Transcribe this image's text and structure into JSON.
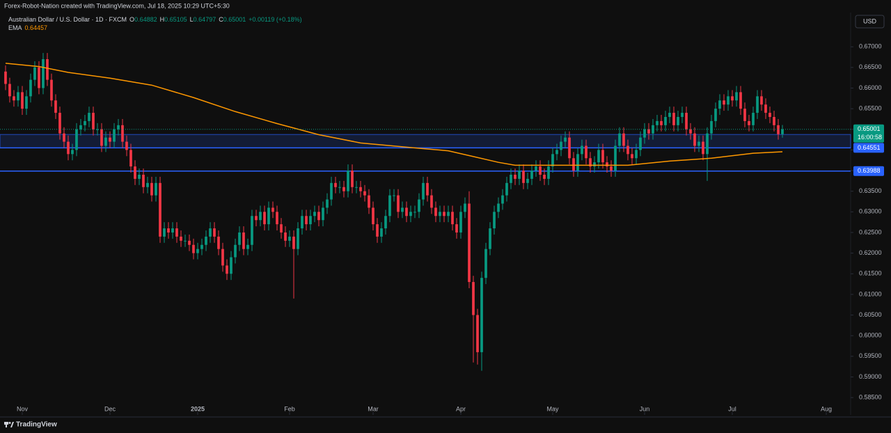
{
  "header": {
    "attribution": "Forex-Robot-Nation created with TradingView.com, Jul 18, 2025 10:29 UTC+5:30"
  },
  "toolbar": {
    "currency": "USD"
  },
  "footer": {
    "brand": "TradingView"
  },
  "chart_data": {
    "type": "candlestick",
    "title": "Australian Dollar / U.S. Dollar · 1D · FXCM",
    "ohlc_labels": [
      "O",
      "H",
      "L",
      "C"
    ],
    "change": "+0.00119 (+0.18%)",
    "countdown": "16:00:58",
    "up_color": "#089981",
    "down_color": "#f23645",
    "open": [
      0.664,
      0.661,
      0.658,
      0.657,
      0.659,
      0.655,
      0.658,
      0.662,
      0.665,
      0.66,
      0.667,
      0.662,
      0.657,
      0.654,
      0.649,
      0.647,
      0.644,
      0.645,
      0.65,
      0.651,
      0.652,
      0.654,
      0.65,
      0.65,
      0.646,
      0.648,
      0.647,
      0.65,
      0.651,
      0.647,
      0.645,
      0.641,
      0.638,
      0.639,
      0.636,
      0.637,
      0.634,
      0.637,
      0.624,
      0.626,
      0.625,
      0.626,
      0.624,
      0.623,
      0.623,
      0.622,
      0.62,
      0.621,
      0.622,
      0.624,
      0.626,
      0.624,
      0.621,
      0.617,
      0.615,
      0.619,
      0.622,
      0.625,
      0.621,
      0.622,
      0.629,
      0.628,
      0.63,
      0.627,
      0.631,
      0.63,
      0.627,
      0.625,
      0.623,
      0.624,
      0.621,
      0.626,
      0.629,
      0.627,
      0.629,
      0.63,
      0.628,
      0.631,
      0.633,
      0.637,
      0.636,
      0.636,
      0.635,
      0.64,
      0.636,
      0.636,
      0.635,
      0.634,
      0.631,
      0.627,
      0.624,
      0.626,
      0.629,
      0.634,
      0.634,
      0.63,
      0.631,
      0.629,
      0.63,
      0.63,
      0.633,
      0.637,
      0.634,
      0.631,
      0.629,
      0.63,
      0.629,
      0.63,
      0.627,
      0.625,
      0.63,
      0.632,
      0.613,
      0.605,
      0.596,
      0.614,
      0.621,
      0.626,
      0.63,
      0.632,
      0.634,
      0.637,
      0.639,
      0.638,
      0.64,
      0.637,
      0.638,
      0.64,
      0.641,
      0.639,
      0.638,
      0.641,
      0.644,
      0.645,
      0.647,
      0.648,
      0.643,
      0.64,
      0.644,
      0.646,
      0.643,
      0.641,
      0.642,
      0.645,
      0.642,
      0.641,
      0.64,
      0.646,
      0.649,
      0.646,
      0.644,
      0.643,
      0.645,
      0.648,
      0.65,
      0.649,
      0.651,
      0.652,
      0.651,
      0.653,
      0.654,
      0.651,
      0.653,
      0.654,
      0.65,
      0.649,
      0.646,
      0.647,
      0.644,
      0.649,
      0.652,
      0.655,
      0.657,
      0.656,
      0.658,
      0.657,
      0.659,
      0.655,
      0.652,
      0.651,
      0.654,
      0.658,
      0.656,
      0.654,
      0.653,
      0.651,
      0.64882
    ],
    "high": [
      0.6655,
      0.6625,
      0.6595,
      0.6605,
      0.6605,
      0.6595,
      0.6635,
      0.6665,
      0.6665,
      0.6685,
      0.6685,
      0.6635,
      0.6585,
      0.6555,
      0.6505,
      0.6485,
      0.6465,
      0.6515,
      0.6525,
      0.6535,
      0.6555,
      0.6555,
      0.6515,
      0.6515,
      0.6495,
      0.6495,
      0.6515,
      0.6525,
      0.6525,
      0.6485,
      0.6465,
      0.6425,
      0.6405,
      0.6405,
      0.6385,
      0.6385,
      0.6385,
      0.6385,
      0.6275,
      0.6275,
      0.6275,
      0.6275,
      0.6255,
      0.6245,
      0.6245,
      0.6235,
      0.6225,
      0.6235,
      0.6255,
      0.6275,
      0.6275,
      0.6255,
      0.6225,
      0.6185,
      0.6205,
      0.6235,
      0.6265,
      0.6265,
      0.6235,
      0.6305,
      0.6305,
      0.6315,
      0.6315,
      0.6325,
      0.6325,
      0.6315,
      0.6285,
      0.6265,
      0.6255,
      0.6255,
      0.6275,
      0.6305,
      0.6305,
      0.6305,
      0.6315,
      0.6315,
      0.6325,
      0.6345,
      0.6385,
      0.6385,
      0.6375,
      0.6375,
      0.6415,
      0.6415,
      0.6375,
      0.6375,
      0.6365,
      0.6355,
      0.6325,
      0.6285,
      0.6275,
      0.6305,
      0.6355,
      0.6355,
      0.6355,
      0.6325,
      0.6325,
      0.6315,
      0.6315,
      0.6345,
      0.6385,
      0.6385,
      0.6355,
      0.6325,
      0.6315,
      0.6315,
      0.6315,
      0.6315,
      0.6285,
      0.6315,
      0.6335,
      0.635,
      0.6145,
      0.6065,
      0.6155,
      0.6225,
      0.6275,
      0.6315,
      0.6335,
      0.6355,
      0.6385,
      0.6405,
      0.6405,
      0.6415,
      0.6415,
      0.6395,
      0.6415,
      0.6425,
      0.6425,
      0.6405,
      0.6425,
      0.6455,
      0.6465,
      0.6485,
      0.6495,
      0.6495,
      0.6445,
      0.6455,
      0.6475,
      0.6475,
      0.6445,
      0.6435,
      0.6465,
      0.6465,
      0.6435,
      0.6425,
      0.6475,
      0.6505,
      0.6505,
      0.6475,
      0.6455,
      0.6465,
      0.6495,
      0.6515,
      0.6515,
      0.6525,
      0.6535,
      0.6535,
      0.6545,
      0.6555,
      0.6555,
      0.6545,
      0.6555,
      0.6555,
      0.6515,
      0.6505,
      0.6485,
      0.6485,
      0.6505,
      0.6535,
      0.6565,
      0.6585,
      0.6585,
      0.6595,
      0.6595,
      0.6605,
      0.6605,
      0.6565,
      0.6535,
      0.6555,
      0.6595,
      0.6595,
      0.6575,
      0.6555,
      0.6545,
      0.6525,
      0.65105
    ],
    "low": [
      0.6595,
      0.6565,
      0.6555,
      0.6555,
      0.6535,
      0.6535,
      0.6565,
      0.6605,
      0.6585,
      0.6585,
      0.6605,
      0.6555,
      0.6525,
      0.6475,
      0.6455,
      0.6425,
      0.6425,
      0.6435,
      0.6485,
      0.6495,
      0.6505,
      0.6485,
      0.6485,
      0.6445,
      0.6445,
      0.6455,
      0.6455,
      0.6485,
      0.6455,
      0.6435,
      0.6395,
      0.6365,
      0.6365,
      0.6345,
      0.6345,
      0.6325,
      0.6325,
      0.6225,
      0.6225,
      0.6235,
      0.6235,
      0.6225,
      0.6215,
      0.6215,
      0.6205,
      0.6185,
      0.6185,
      0.6195,
      0.6205,
      0.6225,
      0.6225,
      0.6195,
      0.6155,
      0.6135,
      0.6135,
      0.6175,
      0.6205,
      0.6195,
      0.6195,
      0.6205,
      0.6265,
      0.6265,
      0.6255,
      0.6255,
      0.6285,
      0.6255,
      0.6235,
      0.6215,
      0.6215,
      0.609,
      0.6195,
      0.6245,
      0.6255,
      0.6255,
      0.6275,
      0.6265,
      0.6265,
      0.6295,
      0.6315,
      0.6345,
      0.6345,
      0.6335,
      0.6335,
      0.6345,
      0.6345,
      0.6335,
      0.6325,
      0.6295,
      0.6255,
      0.6225,
      0.6225,
      0.6245,
      0.6275,
      0.6325,
      0.6285,
      0.6285,
      0.6275,
      0.6275,
      0.6285,
      0.6285,
      0.6315,
      0.6325,
      0.6295,
      0.6275,
      0.6275,
      0.6275,
      0.6275,
      0.6255,
      0.6235,
      0.6235,
      0.6285,
      0.6115,
      0.5935,
      0.593,
      0.5915,
      0.6125,
      0.6195,
      0.6245,
      0.6285,
      0.6305,
      0.6325,
      0.6355,
      0.6365,
      0.6365,
      0.6355,
      0.6355,
      0.6365,
      0.6385,
      0.6375,
      0.6365,
      0.6365,
      0.6395,
      0.6425,
      0.6435,
      0.6455,
      0.6415,
      0.6385,
      0.6385,
      0.6425,
      0.6415,
      0.6395,
      0.6395,
      0.6405,
      0.6405,
      0.6395,
      0.6385,
      0.6385,
      0.6445,
      0.6445,
      0.6425,
      0.6415,
      0.6415,
      0.6435,
      0.6465,
      0.6475,
      0.6475,
      0.6495,
      0.6495,
      0.6495,
      0.6515,
      0.6495,
      0.6495,
      0.6515,
      0.6485,
      0.6475,
      0.6445,
      0.6445,
      0.6425,
      0.6375,
      0.6475,
      0.6505,
      0.6535,
      0.6545,
      0.6545,
      0.6555,
      0.6555,
      0.6535,
      0.6505,
      0.6495,
      0.6495,
      0.6525,
      0.6545,
      0.6525,
      0.6515,
      0.6495,
      0.6475,
      0.64797
    ],
    "close": [
      0.661,
      0.658,
      0.657,
      0.659,
      0.655,
      0.658,
      0.662,
      0.665,
      0.66,
      0.667,
      0.662,
      0.657,
      0.654,
      0.649,
      0.647,
      0.644,
      0.645,
      0.65,
      0.651,
      0.652,
      0.654,
      0.65,
      0.65,
      0.646,
      0.648,
      0.647,
      0.65,
      0.651,
      0.647,
      0.645,
      0.641,
      0.638,
      0.639,
      0.636,
      0.637,
      0.634,
      0.637,
      0.624,
      0.626,
      0.625,
      0.626,
      0.624,
      0.623,
      0.623,
      0.622,
      0.62,
      0.621,
      0.622,
      0.624,
      0.626,
      0.624,
      0.621,
      0.617,
      0.615,
      0.619,
      0.622,
      0.625,
      0.621,
      0.622,
      0.629,
      0.628,
      0.63,
      0.627,
      0.631,
      0.63,
      0.627,
      0.625,
      0.623,
      0.624,
      0.621,
      0.626,
      0.629,
      0.627,
      0.629,
      0.63,
      0.628,
      0.631,
      0.633,
      0.637,
      0.636,
      0.636,
      0.635,
      0.64,
      0.636,
      0.636,
      0.635,
      0.634,
      0.631,
      0.627,
      0.624,
      0.626,
      0.629,
      0.634,
      0.634,
      0.63,
      0.631,
      0.629,
      0.63,
      0.63,
      0.633,
      0.637,
      0.634,
      0.631,
      0.629,
      0.63,
      0.629,
      0.63,
      0.627,
      0.625,
      0.63,
      0.632,
      0.613,
      0.605,
      0.596,
      0.614,
      0.621,
      0.626,
      0.63,
      0.632,
      0.634,
      0.637,
      0.639,
      0.638,
      0.64,
      0.637,
      0.638,
      0.64,
      0.641,
      0.639,
      0.638,
      0.641,
      0.644,
      0.645,
      0.647,
      0.648,
      0.643,
      0.64,
      0.644,
      0.646,
      0.643,
      0.641,
      0.642,
      0.645,
      0.642,
      0.641,
      0.64,
      0.646,
      0.649,
      0.646,
      0.644,
      0.643,
      0.645,
      0.648,
      0.65,
      0.649,
      0.651,
      0.652,
      0.651,
      0.653,
      0.654,
      0.651,
      0.653,
      0.654,
      0.65,
      0.649,
      0.646,
      0.647,
      0.644,
      0.649,
      0.652,
      0.655,
      0.657,
      0.656,
      0.658,
      0.657,
      0.659,
      0.655,
      0.652,
      0.651,
      0.654,
      0.658,
      0.656,
      0.654,
      0.653,
      0.651,
      0.64882,
      0.65001
    ],
    "ema": {
      "name": "EMA",
      "color": "#ff9800",
      "x": [
        0,
        8,
        15,
        25,
        35,
        45,
        55,
        65,
        75,
        85,
        99,
        106,
        112,
        118,
        122,
        132,
        142,
        149,
        159,
        169,
        179,
        186
      ],
      "values": [
        0.666,
        0.6652,
        0.6638,
        0.6624,
        0.6607,
        0.6577,
        0.6543,
        0.6514,
        0.6487,
        0.6467,
        0.6454,
        0.6448,
        0.6434,
        0.642,
        0.6413,
        0.6413,
        0.6413,
        0.6413,
        0.6423,
        0.643,
        0.6442,
        0.64457
      ]
    },
    "levels": [
      {
        "value": 0.64551,
        "color": "#2962ff"
      },
      {
        "value": 0.63988,
        "color": "#2962ff"
      }
    ],
    "zone": {
      "range": [
        0.64551,
        0.64875
      ],
      "color": "#2962ff"
    },
    "xlim": [
      -1.33,
      202.33
    ],
    "xticks": [
      {
        "value": 4,
        "label": "Nov"
      },
      {
        "value": 25,
        "label": "Dec"
      },
      {
        "value": 46,
        "label": "2025"
      },
      {
        "value": 68,
        "label": "Feb"
      },
      {
        "value": 88,
        "label": "Mar"
      },
      {
        "value": 109,
        "label": "Apr"
      },
      {
        "value": 131,
        "label": "May"
      },
      {
        "value": 153,
        "label": "Jun"
      },
      {
        "value": 174,
        "label": "Jul"
      },
      {
        "value": 196.5,
        "label": "Aug"
      }
    ],
    "ylim": [
      0.5808,
      0.6783
    ],
    "yticks": [
      {
        "value": 0.585,
        "label": "0.58500"
      },
      {
        "value": 0.59,
        "label": "0.59000"
      },
      {
        "value": 0.595,
        "label": "0.59500"
      },
      {
        "value": 0.6,
        "label": "0.60000"
      },
      {
        "value": 0.605,
        "label": "0.60500"
      },
      {
        "value": 0.61,
        "label": "0.61000"
      },
      {
        "value": 0.615,
        "label": "0.61500"
      },
      {
        "value": 0.62,
        "label": "0.62000"
      },
      {
        "value": 0.625,
        "label": "0.62500"
      },
      {
        "value": 0.63,
        "label": "0.63000"
      },
      {
        "value": 0.635,
        "label": "0.63500"
      },
      {
        "value": 0.64,
        "label": "0.64000"
      },
      {
        "value": 0.645,
        "label": "0.64500"
      },
      {
        "value": 0.65,
        "label": "0.65000"
      },
      {
        "value": 0.655,
        "label": "0.65500"
      },
      {
        "value": 0.66,
        "label": "0.66000"
      },
      {
        "value": 0.665,
        "label": "0.66500"
      },
      {
        "value": 0.67,
        "label": "0.67000"
      }
    ]
  }
}
